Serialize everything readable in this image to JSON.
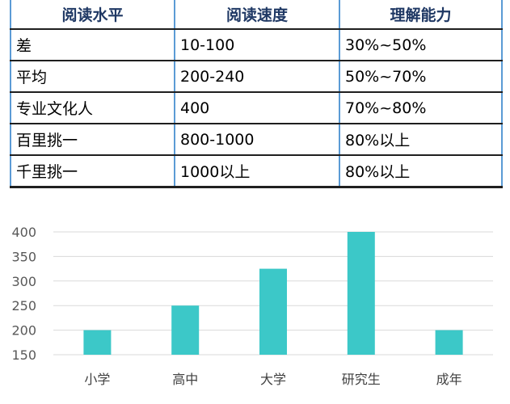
{
  "table": {
    "headers": [
      "阅读水平",
      "阅读速度",
      "理解能力"
    ],
    "rows": [
      [
        "差",
        "10-100",
        "30%~50%"
      ],
      [
        "平均",
        "200-240",
        "50%~70%"
      ],
      [
        "专业文化人",
        "400",
        "70%~80%"
      ],
      [
        "百里挑一",
        "800-1000",
        "80%以上"
      ],
      [
        "千里挑一",
        "1000以上",
        "80%以上"
      ]
    ]
  },
  "chart_data": {
    "type": "bar",
    "categories": [
      "小学",
      "高中",
      "大学",
      "研究生",
      "成年"
    ],
    "values": [
      200,
      250,
      325,
      400,
      200
    ],
    "yticks": [
      150,
      200,
      250,
      300,
      350,
      400
    ],
    "ylim": [
      150,
      400
    ],
    "title": "",
    "xlabel": "",
    "ylabel": "",
    "grid": true,
    "bar_color": "#3cc8c8"
  }
}
